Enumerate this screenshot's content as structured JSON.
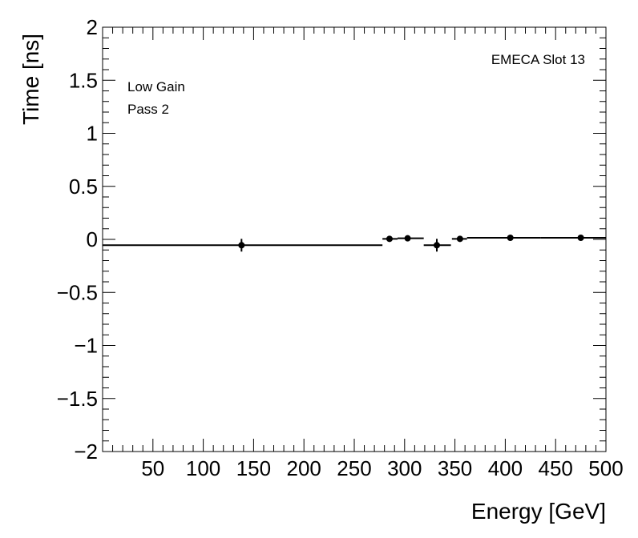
{
  "chart_data": {
    "type": "scatter",
    "title": "",
    "xlabel": "Energy [GeV]",
    "ylabel": "Time [ns]",
    "xlim": [
      0,
      500
    ],
    "ylim": [
      -2,
      2
    ],
    "x_ticks": [
      50,
      100,
      150,
      200,
      250,
      300,
      350,
      400,
      450,
      500
    ],
    "y_ticks": [
      -2,
      -1.5,
      -1,
      -0.5,
      0,
      0.5,
      1,
      1.5,
      2
    ],
    "y_tick_labels": [
      "−2",
      "−1.5",
      "−1",
      "−0.5",
      "0",
      "0.5",
      "1",
      "1.5",
      "2"
    ],
    "annotations": {
      "slot": "EMECA Slot 13",
      "gain": "Low Gain",
      "pass": "Pass 2"
    },
    "grid": false,
    "points": [
      {
        "x": 138,
        "y": -0.055,
        "xerr_low": 138,
        "xerr_high": 140,
        "yerr": 0.06
      },
      {
        "x": 285,
        "y": 0.005,
        "xerr_low": 7,
        "xerr_high": 8,
        "yerr": 0.02
      },
      {
        "x": 303,
        "y": 0.01,
        "xerr_low": 10,
        "xerr_high": 16,
        "yerr": 0.02
      },
      {
        "x": 332,
        "y": -0.055,
        "xerr_low": 13,
        "xerr_high": 14,
        "yerr": 0.06
      },
      {
        "x": 355,
        "y": 0.005,
        "xerr_low": 8,
        "xerr_high": 7,
        "yerr": 0.02
      },
      {
        "x": 405,
        "y": 0.015,
        "xerr_low": 43,
        "xerr_high": 30,
        "yerr": 0.015
      },
      {
        "x": 475,
        "y": 0.015,
        "xerr_low": 40,
        "xerr_high": 25,
        "yerr": 0.015
      }
    ]
  }
}
